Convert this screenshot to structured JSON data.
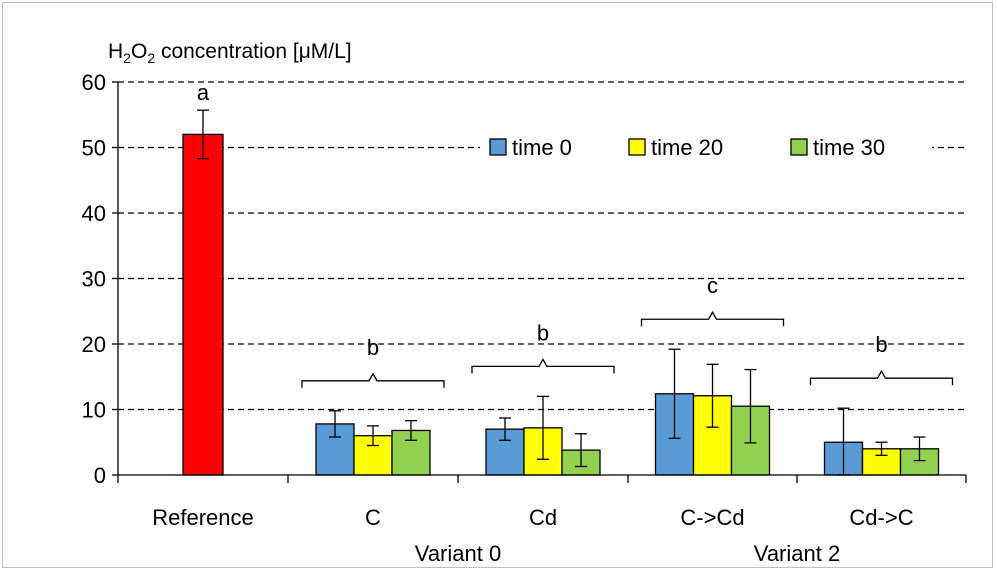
{
  "chart_data": {
    "type": "bar",
    "y_axis_title": {
      "prefix": "H",
      "sub1": "2",
      "mid": "O",
      "sub2": "2",
      "suffix": " concentration  [μM/L]"
    },
    "ylim": [
      0,
      60
    ],
    "yticks": [
      0,
      10,
      20,
      30,
      40,
      50,
      60
    ],
    "grid": "dashed horizontal",
    "legend_position": "top-right",
    "reference": {
      "label": "Reference",
      "value": 52,
      "error": 3.7,
      "color": "#ff0000",
      "significance": "a"
    },
    "categories": [
      "C",
      "Cd",
      "C->Cd",
      "Cd->C"
    ],
    "groups": [
      "Variant 0",
      "Variant 2"
    ],
    "series": [
      {
        "name": "time 0",
        "color": "#5b9bd5",
        "values": [
          7.8,
          7.0,
          12.4,
          5.0
        ],
        "errors": [
          2.0,
          1.7,
          6.8,
          5.2
        ]
      },
      {
        "name": "time 20",
        "color": "#ffff00",
        "values": [
          6.0,
          7.2,
          12.1,
          4.0
        ],
        "errors": [
          1.5,
          4.8,
          4.8,
          1.0
        ]
      },
      {
        "name": "time 30",
        "color": "#92d050",
        "values": [
          6.8,
          3.8,
          10.5,
          4.0
        ],
        "errors": [
          1.5,
          2.5,
          5.6,
          1.8
        ]
      }
    ],
    "significance": [
      "b",
      "b",
      "c",
      "b"
    ]
  }
}
